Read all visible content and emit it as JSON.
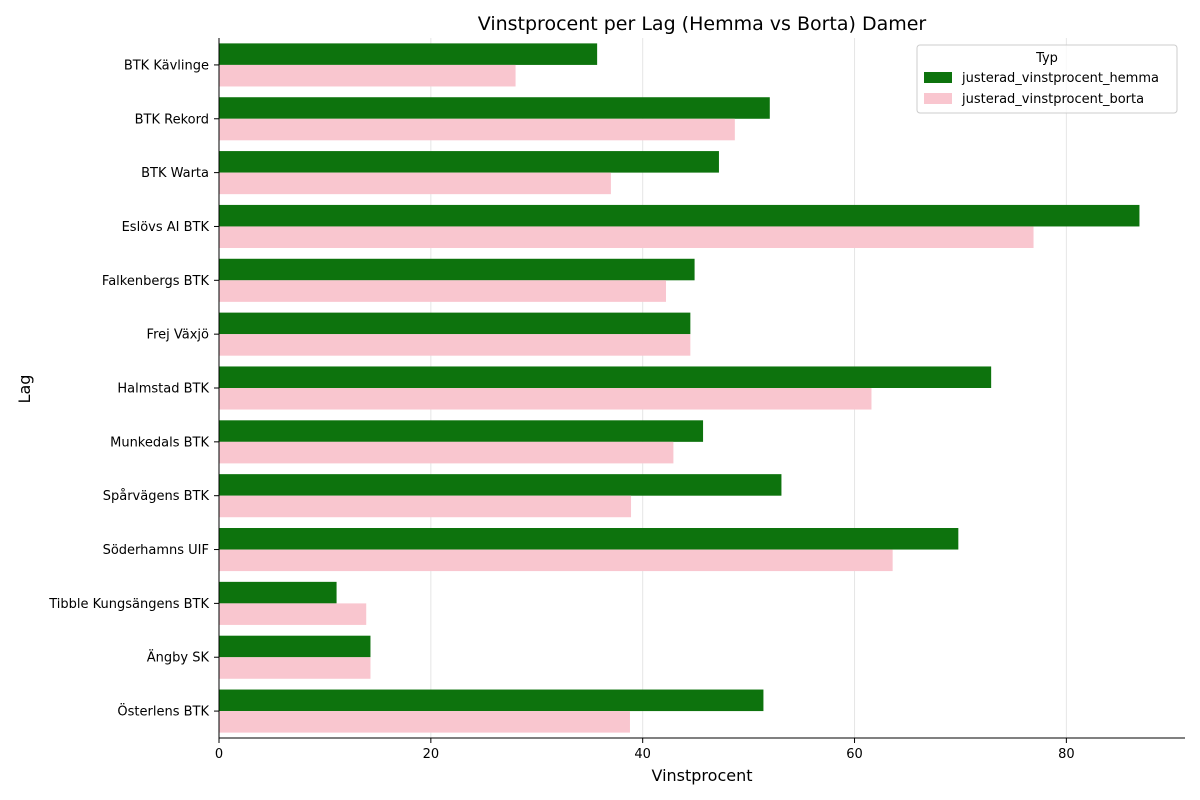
{
  "chart_data": {
    "type": "bar",
    "orientation": "horizontal",
    "title": "Vinstprocent per Lag (Hemma vs Borta) Damer",
    "xlabel": "Vinstprocent",
    "ylabel": "Lag",
    "xlim": [
      0,
      91.2
    ],
    "xticks": [
      0,
      20,
      40,
      60,
      80
    ],
    "grid": "x",
    "legend": {
      "title": "Typ",
      "placement": "top-right"
    },
    "categories": [
      "BTK Kävlinge",
      "BTK Rekord",
      "BTK Warta",
      "Eslövs AI BTK",
      "Falkenbergs BTK",
      "Frej Växjö",
      "Halmstad BTK",
      "Munkedals BTK",
      "Spårvägens BTK",
      "Söderhamns UIF",
      "Tibble Kungsängens BTK",
      "Ängby SK",
      "Österlens BTK"
    ],
    "series": [
      {
        "name": "justerad_vinstprocent_hemma",
        "color": "#0d730d",
        "values": [
          35.7,
          52.0,
          47.2,
          86.9,
          44.9,
          44.5,
          72.9,
          45.7,
          53.1,
          69.8,
          11.1,
          14.3,
          51.4
        ]
      },
      {
        "name": "justerad_vinstprocent_borta",
        "color": "#f9c6cf",
        "values": [
          28.0,
          48.7,
          37.0,
          76.9,
          42.2,
          44.5,
          61.6,
          42.9,
          38.9,
          63.6,
          13.9,
          14.3,
          38.8
        ]
      }
    ]
  }
}
